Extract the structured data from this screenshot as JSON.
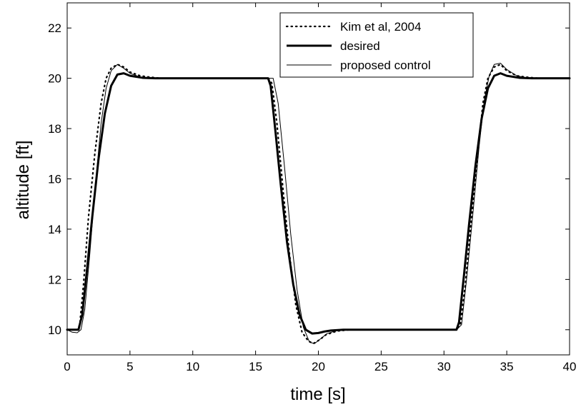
{
  "chart_data": {
    "type": "line",
    "title": "",
    "xlabel": "time [s]",
    "ylabel": "altitude [ft]",
    "xlim": [
      0,
      40
    ],
    "ylim": [
      9,
      23
    ],
    "xticks": [
      0,
      5,
      10,
      15,
      20,
      25,
      30,
      35,
      40
    ],
    "yticks": [
      10,
      12,
      14,
      16,
      18,
      20,
      22
    ],
    "grid": false,
    "legend_position": "top-right",
    "series": [
      {
        "name": "Kim et al, 2004",
        "style": "dotted",
        "x": [
          0,
          0.8,
          1.0,
          1.3,
          1.7,
          2.2,
          2.7,
          3.1,
          3.5,
          4.0,
          4.5,
          5.0,
          5.8,
          6.5,
          7.5,
          9,
          16.0,
          16.3,
          16.7,
          17.2,
          17.7,
          18.2,
          18.7,
          19.2,
          19.6,
          20.1,
          20.6,
          21.5,
          22.5,
          24,
          31.0,
          31.3,
          31.7,
          32.2,
          32.7,
          33.1,
          33.5,
          34.0,
          34.5,
          35.0,
          35.8,
          36.5,
          37.5,
          40
        ],
        "y": [
          10,
          10,
          10.2,
          11.8,
          14.5,
          17.0,
          19.0,
          20.0,
          20.4,
          20.55,
          20.45,
          20.25,
          20.1,
          20.05,
          20.0,
          20.0,
          20.0,
          19.8,
          18.2,
          15.5,
          13.0,
          11.0,
          9.9,
          9.55,
          9.45,
          9.6,
          9.8,
          9.95,
          10.0,
          10.0,
          10.0,
          10.2,
          11.8,
          14.5,
          17.0,
          19.0,
          20.0,
          20.45,
          20.55,
          20.3,
          20.1,
          20.05,
          20.0,
          20.0
        ]
      },
      {
        "name": "desired",
        "style": "thick",
        "x": [
          0,
          0.9,
          1.2,
          1.6,
          2.0,
          2.5,
          3.0,
          3.5,
          4.0,
          4.5,
          5.0,
          6.0,
          7,
          16.0,
          16.2,
          16.6,
          17.0,
          17.5,
          18.0,
          18.5,
          19.0,
          19.5,
          20.0,
          20.5,
          21.0,
          22.0,
          23,
          31.0,
          31.2,
          31.6,
          32.0,
          32.5,
          33.0,
          33.5,
          34.0,
          34.5,
          35.0,
          36.0,
          37,
          40
        ],
        "y": [
          10,
          10,
          10.6,
          12.5,
          14.5,
          16.8,
          18.6,
          19.7,
          20.15,
          20.2,
          20.1,
          20.02,
          20.0,
          20.0,
          19.7,
          17.8,
          15.8,
          13.5,
          11.8,
          10.6,
          10.0,
          9.85,
          9.87,
          9.93,
          9.97,
          10.0,
          10.0,
          10.0,
          10.3,
          12.2,
          14.2,
          16.5,
          18.4,
          19.6,
          20.1,
          20.2,
          20.1,
          20.02,
          20.0,
          20.0
        ]
      },
      {
        "name": "proposed control",
        "style": "thin",
        "x": [
          0,
          0.4,
          0.8,
          1.1,
          1.4,
          1.8,
          2.2,
          2.7,
          3.1,
          3.5,
          4.0,
          4.5,
          5.0,
          5.8,
          6.5,
          8,
          16.0,
          16.4,
          16.8,
          17.3,
          17.8,
          18.3,
          18.8,
          19.3,
          19.7,
          20.2,
          20.7,
          21.5,
          23,
          31.0,
          31.4,
          31.8,
          32.3,
          32.8,
          33.2,
          33.6,
          34.0,
          34.5,
          35.0,
          35.8,
          36.5,
          38,
          40
        ],
        "y": [
          10,
          9.9,
          9.88,
          10.0,
          10.8,
          13.0,
          15.5,
          18.2,
          19.6,
          20.3,
          20.55,
          20.4,
          20.2,
          20.05,
          20.02,
          20.0,
          20.0,
          20.0,
          19.0,
          16.5,
          13.8,
          11.6,
          10.1,
          9.5,
          9.45,
          9.65,
          9.85,
          9.97,
          10.0,
          10.0,
          10.2,
          12.0,
          14.6,
          17.3,
          19.1,
          20.1,
          20.55,
          20.6,
          20.35,
          20.1,
          20.03,
          20.0,
          20.0
        ]
      }
    ]
  }
}
